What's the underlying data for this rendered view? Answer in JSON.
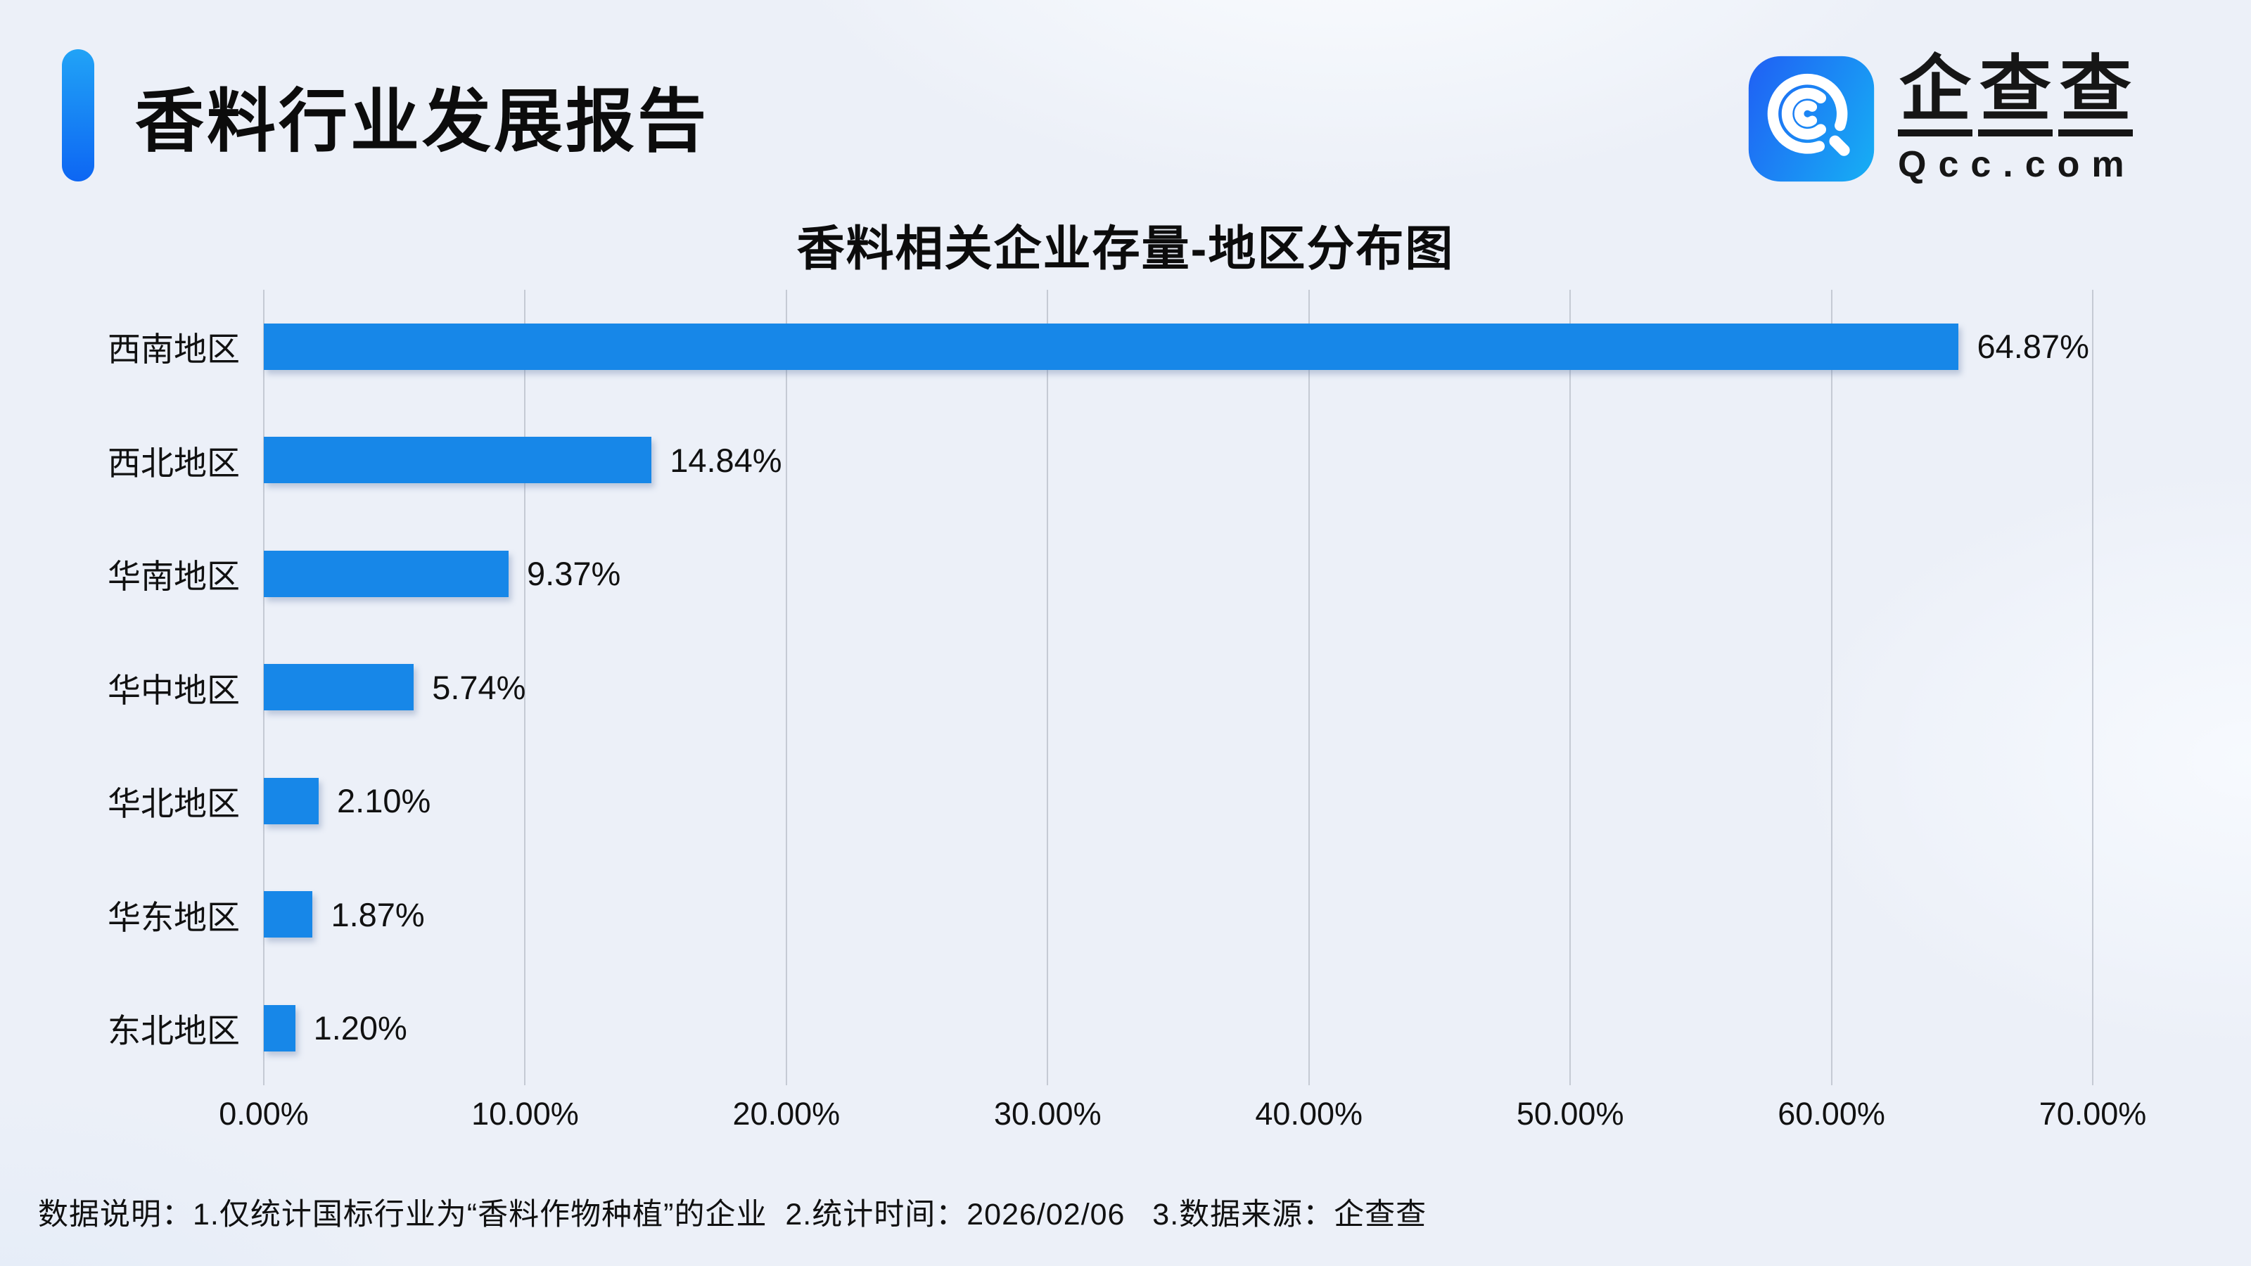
{
  "header": {
    "title": "香料行业发展报告"
  },
  "logo": {
    "name": "企查查",
    "name_chars": [
      "企",
      "查",
      "查"
    ],
    "domain": "Qcc.com",
    "brand_color": "#1787e8"
  },
  "chart_data": {
    "type": "bar",
    "orientation": "horizontal",
    "title": "香料相关企业存量-地区分布图",
    "categories": [
      "西南地区",
      "西北地区",
      "华南地区",
      "华中地区",
      "华北地区",
      "华东地区",
      "东北地区"
    ],
    "values": [
      64.87,
      14.84,
      9.37,
      5.74,
      2.1,
      1.87,
      1.2
    ],
    "value_labels": [
      "64.87%",
      "14.84%",
      "9.37%",
      "5.74%",
      "2.10%",
      "1.87%",
      "1.20%"
    ],
    "xlabel": "",
    "ylabel": "",
    "xlim": [
      0,
      70
    ],
    "x_ticks": [
      "0.00%",
      "10.00%",
      "20.00%",
      "30.00%",
      "40.00%",
      "50.00%",
      "60.00%",
      "70.00%"
    ],
    "grid": "vertical",
    "legend": "none",
    "bar_color": "#1787e8",
    "gridline_color": "#c5cad4"
  },
  "footer": {
    "note": "数据说明：1.仅统计国标行业为“香料作物种植”的企业  2.统计时间：2026/02/06   3.数据来源：企查查"
  }
}
